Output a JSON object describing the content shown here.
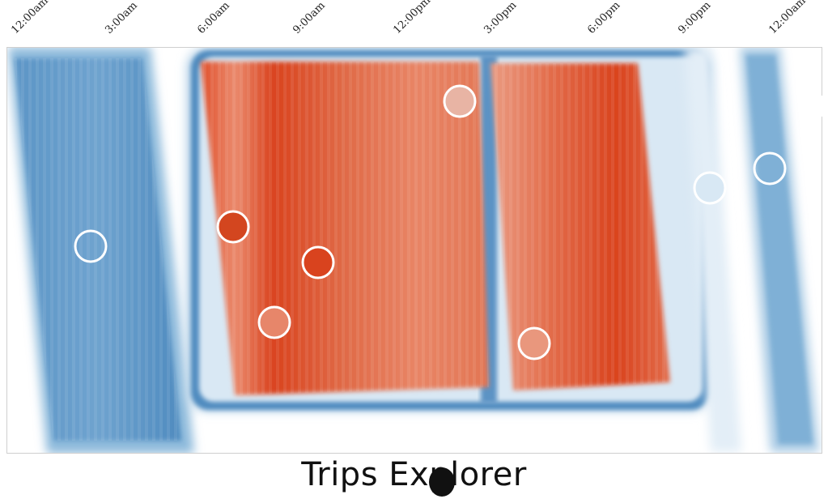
{
  "time_axis": {
    "ticks": [
      "12:00am",
      "3:00am",
      "6:00am",
      "9:00am",
      "12:00pm",
      "3:00pm",
      "6:00pm",
      "9:00pm",
      "12:00am"
    ]
  },
  "title": "Trips Explorer",
  "colors": {
    "cold": "#3d7fb8",
    "cold_light": "#c9def0",
    "hot": "#d9431e",
    "hot_light": "#e9957a",
    "background": "#ffffff"
  },
  "markers": [
    {
      "id": "early-morning",
      "fill": "none"
    },
    {
      "id": "morning-peak",
      "fill": "#d3461f"
    },
    {
      "id": "late-morning",
      "fill": "#e7866a"
    },
    {
      "id": "mid-morning",
      "fill": "#d9431e"
    },
    {
      "id": "noon",
      "fill": "#e8b4a4"
    },
    {
      "id": "afternoon",
      "fill": "#e9977d"
    },
    {
      "id": "evening",
      "fill": "#d8e8f3"
    },
    {
      "id": "night",
      "fill": "none"
    }
  ]
}
